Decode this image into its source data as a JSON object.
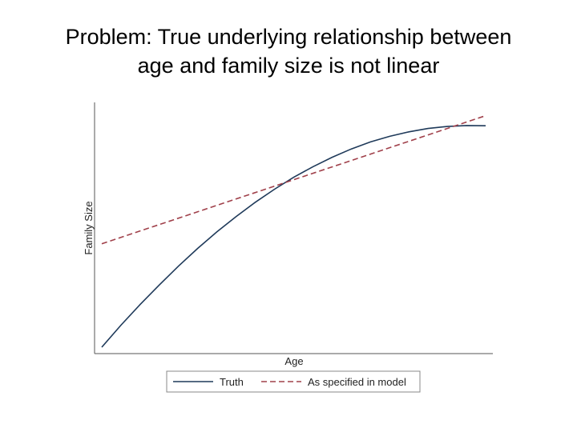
{
  "slide": {
    "title_line1": "Problem: True underlying relationship between",
    "title_line2": "age and family size is not linear"
  },
  "chart_data": {
    "type": "line",
    "xlabel": "Age",
    "ylabel": "Family Size",
    "xlim": [
      0,
      1
    ],
    "ylim": [
      0,
      1
    ],
    "grid": false,
    "legend_position": "bottom",
    "series": [
      {
        "name": "Truth",
        "style": "solid",
        "color": "#1f3a5a",
        "x": [
          0,
          0.05,
          0.1,
          0.15,
          0.2,
          0.25,
          0.3,
          0.35,
          0.4,
          0.45,
          0.5,
          0.55,
          0.6,
          0.65,
          0.7,
          0.75,
          0.8,
          0.85,
          0.9,
          0.95,
          1.0
        ],
        "y": [
          0.0,
          0.098,
          0.19,
          0.277,
          0.361,
          0.44,
          0.513,
          0.581,
          0.645,
          0.703,
          0.756,
          0.803,
          0.845,
          0.882,
          0.913,
          0.938,
          0.958,
          0.973,
          0.982,
          0.986,
          0.985
        ]
      },
      {
        "name": "As specified in model",
        "style": "dashed",
        "color": "#a0404a",
        "x": [
          0,
          1
        ],
        "y": [
          0.46,
          1.03
        ]
      }
    ]
  }
}
